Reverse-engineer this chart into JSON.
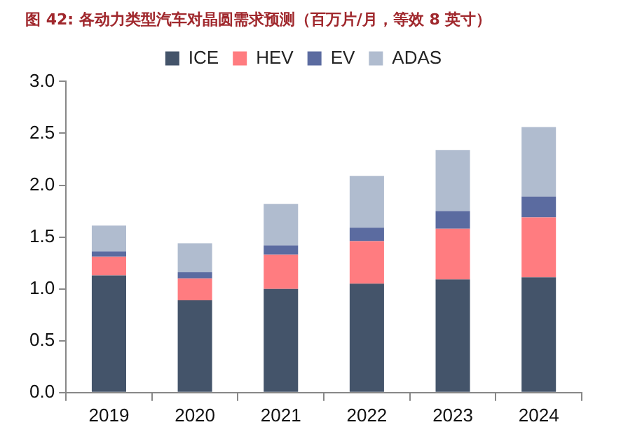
{
  "chart_data": {
    "type": "bar",
    "title": "图 42: 各动力类型汽车对晶圆需求预测（百万片/月，等效 8 英寸）",
    "stacked": true,
    "legend": "top",
    "grid": false,
    "categories": [
      "2019",
      "2020",
      "2021",
      "2022",
      "2023",
      "2024"
    ],
    "series": [
      {
        "name": "ICE",
        "color": "#44546a",
        "values": [
          1.13,
          0.89,
          1.0,
          1.05,
          1.09,
          1.11
        ]
      },
      {
        "name": "HEV",
        "color": "#ff7c80",
        "values": [
          0.18,
          0.21,
          0.33,
          0.41,
          0.49,
          0.58
        ]
      },
      {
        "name": "EV",
        "color": "#5b6ba0",
        "values": [
          0.05,
          0.06,
          0.09,
          0.13,
          0.17,
          0.2
        ]
      },
      {
        "name": "ADAS",
        "color": "#b0bccf",
        "values": [
          0.25,
          0.28,
          0.4,
          0.5,
          0.59,
          0.67
        ]
      }
    ],
    "ylim": [
      0,
      3.0
    ],
    "yticks": [
      {
        "value": 0,
        "label": "0.0"
      },
      {
        "value": 0.5,
        "label": "0.5"
      },
      {
        "value": 1,
        "label": "1.0"
      },
      {
        "value": 1.5,
        "label": "1.5"
      },
      {
        "value": 2,
        "label": "2.0"
      },
      {
        "value": 2.5,
        "label": "2.5"
      },
      {
        "value": 3,
        "label": "3.0"
      }
    ]
  }
}
